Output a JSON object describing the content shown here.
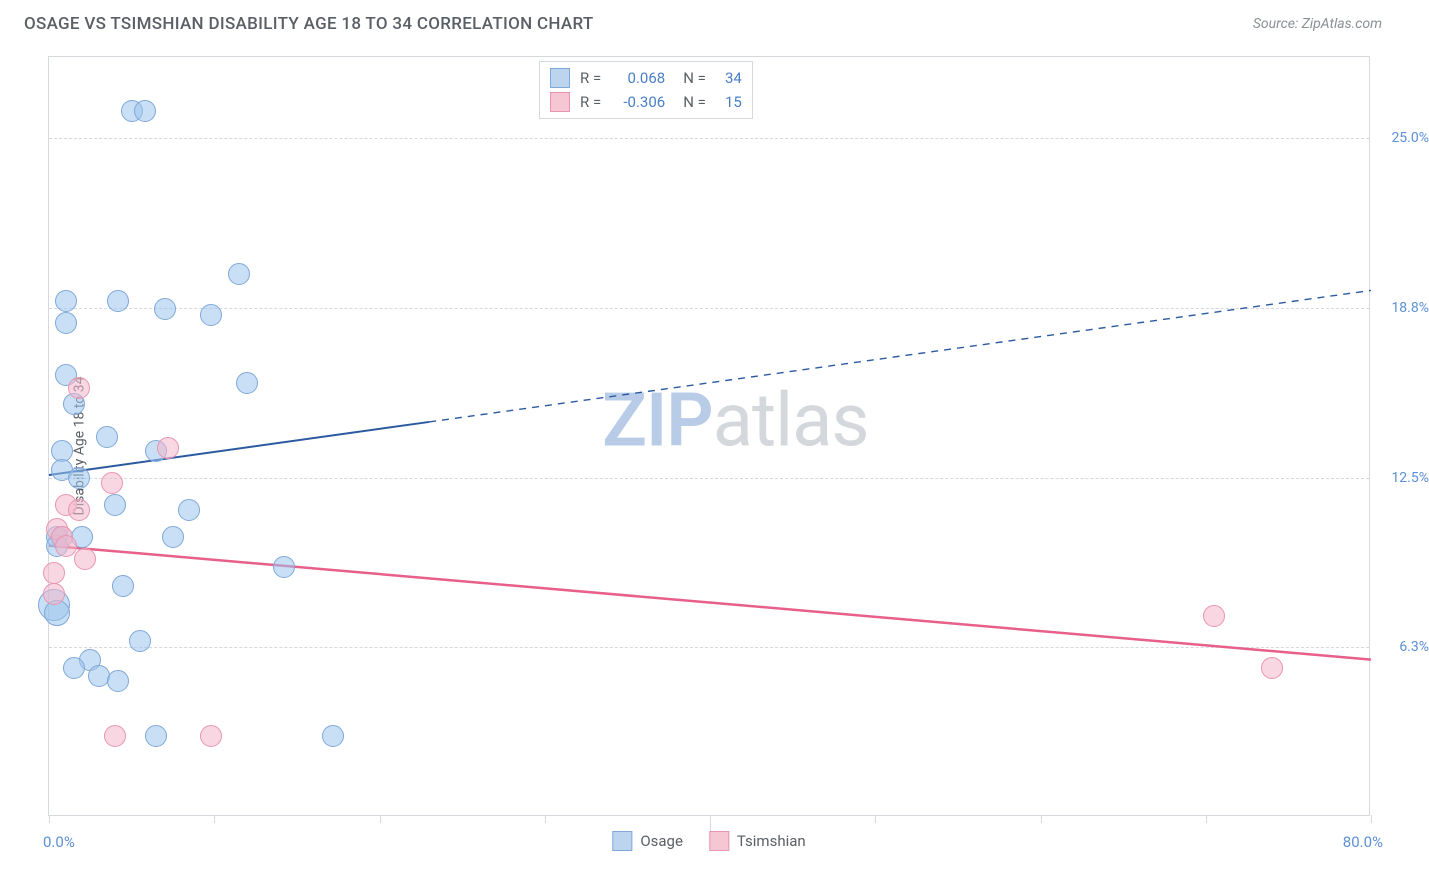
{
  "header": {
    "title": "OSAGE VS TSIMSHIAN DISABILITY AGE 18 TO 34 CORRELATION CHART",
    "source_prefix": "Source: ",
    "source": "ZipAtlas.com"
  },
  "chart": {
    "type": "scatter",
    "ylabel": "Disability Age 18 to 34",
    "xlim": [
      0,
      80
    ],
    "ylim": [
      0,
      28
    ],
    "xlabel_min": "0.0%",
    "xlabel_max": "80.0%",
    "xtick_positions": [
      0,
      10,
      20,
      30,
      40,
      50,
      60,
      70,
      80
    ],
    "yticks": [
      {
        "value": 25.0,
        "label": "25.0%"
      },
      {
        "value": 18.75,
        "label": "18.8%"
      },
      {
        "value": 12.5,
        "label": "12.5%"
      },
      {
        "value": 6.25,
        "label": "6.3%"
      }
    ],
    "ytick_label_color": "#5b8fd6",
    "xlabel_color": "#5b8fd6",
    "background_color": "#ffffff",
    "grid_color": "#d5d8dc",
    "border_color": "#d5d8dc",
    "watermark": {
      "text_bold": "ZIP",
      "text_light": "atlas",
      "color_bold": "#b8cce8",
      "color_light": "#d4d8dc"
    },
    "legend_top": {
      "rows": [
        {
          "swatch_fill": "#bcd4ee",
          "swatch_border": "#7fa8d8",
          "r_label": "R =",
          "r_value": "0.068",
          "n_label": "N =",
          "n_value": "34",
          "value_color": "#4a7fc8"
        },
        {
          "swatch_fill": "#f5c7d5",
          "swatch_border": "#e895b0",
          "r_label": "R =",
          "r_value": "-0.306",
          "n_label": "N =",
          "n_value": "15",
          "value_color": "#4a7fc8"
        }
      ]
    },
    "legend_bottom": [
      {
        "swatch_fill": "#bcd4ee",
        "swatch_border": "#7fa8d8",
        "label": "Osage"
      },
      {
        "swatch_fill": "#f5c7d5",
        "swatch_border": "#e895b0",
        "label": "Tsimshian"
      }
    ],
    "series": [
      {
        "name": "Osage",
        "point_fill": "rgba(156,196,236,0.55)",
        "point_border": "#7fa8d8",
        "point_radius": 11,
        "trend": {
          "color": "#2c5aa0",
          "width": 2,
          "x1": 0,
          "y1": 12.6,
          "x2": 80,
          "y2": 19.4,
          "solid_until_x": 23
        },
        "points": [
          {
            "x": 5.0,
            "y": 26.0,
            "r": 11
          },
          {
            "x": 5.8,
            "y": 26.0,
            "r": 11
          },
          {
            "x": 11.5,
            "y": 20.0,
            "r": 11
          },
          {
            "x": 1.0,
            "y": 19.0,
            "r": 11
          },
          {
            "x": 4.2,
            "y": 19.0,
            "r": 11
          },
          {
            "x": 7.0,
            "y": 18.7,
            "r": 11
          },
          {
            "x": 9.8,
            "y": 18.5,
            "r": 11
          },
          {
            "x": 1.0,
            "y": 18.2,
            "r": 11
          },
          {
            "x": 1.0,
            "y": 16.3,
            "r": 11
          },
          {
            "x": 12.0,
            "y": 16.0,
            "r": 11
          },
          {
            "x": 1.5,
            "y": 15.2,
            "r": 11
          },
          {
            "x": 3.5,
            "y": 14.0,
            "r": 11
          },
          {
            "x": 0.8,
            "y": 13.5,
            "r": 11
          },
          {
            "x": 6.5,
            "y": 13.5,
            "r": 11
          },
          {
            "x": 0.8,
            "y": 12.8,
            "r": 11
          },
          {
            "x": 1.8,
            "y": 12.5,
            "r": 11
          },
          {
            "x": 4.0,
            "y": 11.5,
            "r": 11
          },
          {
            "x": 8.5,
            "y": 11.3,
            "r": 11
          },
          {
            "x": 0.5,
            "y": 10.3,
            "r": 11
          },
          {
            "x": 0.8,
            "y": 10.3,
            "r": 11
          },
          {
            "x": 2.0,
            "y": 10.3,
            "r": 11
          },
          {
            "x": 7.5,
            "y": 10.3,
            "r": 11
          },
          {
            "x": 14.2,
            "y": 9.2,
            "r": 11
          },
          {
            "x": 4.5,
            "y": 8.5,
            "r": 11
          },
          {
            "x": 0.3,
            "y": 7.8,
            "r": 16
          },
          {
            "x": 0.5,
            "y": 7.5,
            "r": 13
          },
          {
            "x": 2.5,
            "y": 5.8,
            "r": 11
          },
          {
            "x": 5.5,
            "y": 6.5,
            "r": 11
          },
          {
            "x": 1.5,
            "y": 5.5,
            "r": 11
          },
          {
            "x": 3.0,
            "y": 5.2,
            "r": 11
          },
          {
            "x": 4.2,
            "y": 5.0,
            "r": 11
          },
          {
            "x": 6.5,
            "y": 3.0,
            "r": 11
          },
          {
            "x": 17.2,
            "y": 3.0,
            "r": 11
          },
          {
            "x": 0.5,
            "y": 10.0,
            "r": 11
          }
        ]
      },
      {
        "name": "Tsimshian",
        "point_fill": "rgba(243,182,202,0.55)",
        "point_border": "#e895b0",
        "point_radius": 11,
        "trend": {
          "color": "#e85f8a",
          "width": 2.5,
          "x1": 0,
          "y1": 10.0,
          "x2": 80,
          "y2": 5.8,
          "solid_until_x": 80
        },
        "points": [
          {
            "x": 1.8,
            "y": 15.8,
            "r": 11
          },
          {
            "x": 7.2,
            "y": 13.6,
            "r": 11
          },
          {
            "x": 3.8,
            "y": 12.3,
            "r": 11
          },
          {
            "x": 1.0,
            "y": 11.5,
            "r": 11
          },
          {
            "x": 1.8,
            "y": 11.3,
            "r": 11
          },
          {
            "x": 0.5,
            "y": 10.6,
            "r": 11
          },
          {
            "x": 0.8,
            "y": 10.3,
            "r": 11
          },
          {
            "x": 0.3,
            "y": 9.0,
            "r": 11
          },
          {
            "x": 0.3,
            "y": 8.2,
            "r": 11
          },
          {
            "x": 4.0,
            "y": 3.0,
            "r": 11
          },
          {
            "x": 9.8,
            "y": 3.0,
            "r": 11
          },
          {
            "x": 70.5,
            "y": 7.4,
            "r": 11
          },
          {
            "x": 74.0,
            "y": 5.5,
            "r": 11
          },
          {
            "x": 1.0,
            "y": 10.0,
            "r": 11
          },
          {
            "x": 2.2,
            "y": 9.5,
            "r": 11
          }
        ]
      }
    ]
  }
}
